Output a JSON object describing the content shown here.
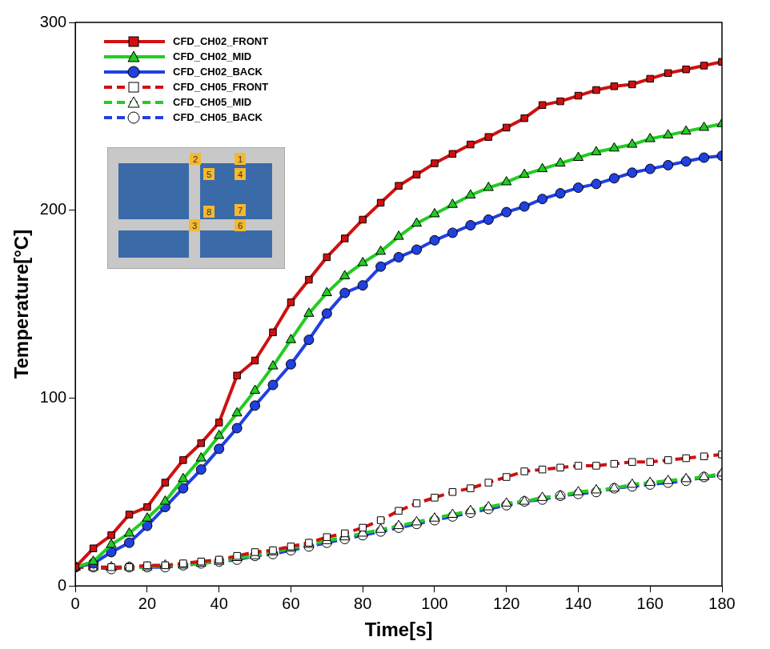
{
  "chart_data": {
    "type": "line",
    "x_label": "Time[s]",
    "y_label": "Temperature[°C]",
    "x": [
      0,
      5,
      10,
      15,
      20,
      25,
      30,
      35,
      40,
      45,
      50,
      55,
      60,
      65,
      70,
      75,
      80,
      85,
      90,
      95,
      100,
      105,
      110,
      115,
      120,
      125,
      130,
      135,
      140,
      145,
      150,
      155,
      160,
      165,
      170,
      175,
      180
    ],
    "series": [
      {
        "name": "CFD_CH02_FRONT",
        "color": "#d01010",
        "marker": "square",
        "line_style": "solid",
        "values": [
          10,
          20,
          27,
          38,
          42,
          55,
          67,
          76,
          87,
          112,
          120,
          135,
          151,
          163,
          175,
          185,
          195,
          204,
          213,
          219,
          225,
          230,
          235,
          239,
          244,
          249,
          256,
          258,
          261,
          264,
          266,
          267,
          270,
          273,
          275,
          277,
          279
        ]
      },
      {
        "name": "CFD_CH02_MID",
        "color": "#22cc22",
        "marker": "triangle",
        "line_style": "solid",
        "values": [
          10,
          13,
          22,
          28,
          36,
          45,
          57,
          68,
          80,
          92,
          104,
          117,
          131,
          145,
          156,
          165,
          172,
          178,
          186,
          193,
          198,
          203,
          208,
          212,
          215,
          219,
          222,
          225,
          228,
          231,
          233,
          235,
          238,
          240,
          242,
          244,
          246
        ]
      },
      {
        "name": "CFD_CH02_BACK",
        "color": "#2040e0",
        "marker": "circle",
        "line_style": "solid",
        "values": [
          10,
          12,
          18,
          23,
          32,
          42,
          52,
          62,
          73,
          84,
          96,
          107,
          118,
          131,
          145,
          156,
          160,
          170,
          175,
          179,
          184,
          188,
          192,
          195,
          199,
          202,
          206,
          209,
          212,
          214,
          217,
          220,
          222,
          224,
          226,
          228,
          229
        ]
      },
      {
        "name": "CFD_CH05_FRONT",
        "color": "#d01010",
        "marker": "square",
        "line_style": "dashed",
        "values": [
          10,
          10,
          10,
          10,
          11,
          11,
          12,
          13,
          14,
          16,
          18,
          19,
          21,
          23,
          26,
          28,
          31,
          35,
          40,
          44,
          47,
          50,
          52,
          55,
          58,
          61,
          62,
          63,
          64,
          64,
          65,
          66,
          66,
          67,
          68,
          69,
          70
        ]
      },
      {
        "name": "CFD_CH05_MID",
        "color": "#22cc22",
        "marker": "triangle",
        "line_style": "dashed",
        "values": [
          10,
          10,
          10,
          10,
          10,
          11,
          11,
          12,
          13,
          15,
          16,
          18,
          20,
          22,
          24,
          26,
          28,
          30,
          32,
          34,
          36,
          38,
          40,
          42,
          44,
          45,
          47,
          48,
          50,
          51,
          52,
          54,
          55,
          56,
          57,
          58,
          60
        ]
      },
      {
        "name": "CFD_CH05_BACK",
        "color": "#2040e0",
        "marker": "circle",
        "line_style": "dashed",
        "values": [
          10,
          10,
          9,
          10,
          10,
          10,
          11,
          12,
          13,
          14,
          16,
          17,
          19,
          21,
          23,
          25,
          27,
          29,
          31,
          33,
          35,
          37,
          39,
          41,
          43,
          45,
          46,
          48,
          49,
          50,
          52,
          53,
          54,
          55,
          56,
          58,
          59
        ]
      }
    ],
    "xlim": [
      0,
      180
    ],
    "xticks": [
      0,
      20,
      40,
      60,
      80,
      100,
      120,
      140,
      160,
      180
    ],
    "ylim": [
      0,
      300
    ],
    "yticks": [
      0,
      100,
      200,
      300
    ],
    "grid": false,
    "legend": "upper left",
    "annotations": [
      "1",
      "2",
      "3",
      "4",
      "5",
      "6",
      "7",
      "8"
    ]
  }
}
